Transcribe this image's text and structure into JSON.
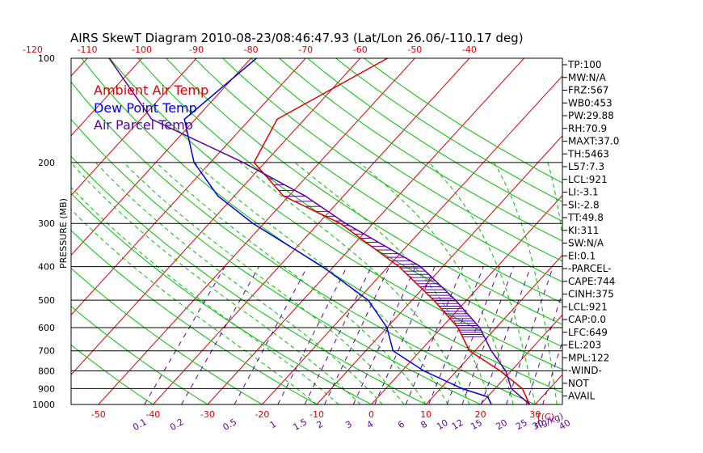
{
  "chart_data": {
    "type": "line",
    "title": "AIRS SkewT Diagram 2010-08-23/08:46:47.93 (Lat/Lon 26.06/-110.17 deg)",
    "ylabel": "PRESSURE (MB)",
    "x_unit_label": "T(C)",
    "mixing_ratio_unit_label": "r(g/kg)",
    "pressure_ticks": [
      100,
      200,
      300,
      400,
      500,
      600,
      700,
      800,
      900,
      1000
    ],
    "bottom_temp_ticks": [
      -50,
      -40,
      -30,
      -20,
      -10,
      0,
      10,
      20,
      30
    ],
    "top_temp_ticks": [
      -120,
      -110,
      -100,
      -90,
      -80,
      -70,
      -60,
      -50,
      -40
    ],
    "mixing_ratio_ticks": [
      "0.1",
      "0.2",
      "0.5",
      "1",
      "1.5",
      "2",
      "3",
      "4",
      "6",
      "8",
      "10",
      "12",
      "15",
      "20",
      "25",
      "30",
      "40"
    ],
    "ylim": [
      1000,
      100
    ],
    "legend": [
      {
        "name": "Ambient Air Temp",
        "color": "#e00000"
      },
      {
        "name": "Dew Point Temp",
        "color": "#0000e0"
      },
      {
        "name": "Air Parcel Temp",
        "color": "#5a00a0"
      }
    ],
    "series": [
      {
        "key": "ambient",
        "color": "#e00000",
        "pressure": [
          100,
          150,
          200,
          250,
          300,
          400,
          500,
          600,
          700,
          800,
          900,
          1000
        ],
        "temperature": [
          -55,
          -65,
          -62,
          -51,
          -36,
          -18,
          -6,
          3,
          9,
          18,
          25,
          29
        ]
      },
      {
        "key": "dewpoint",
        "color": "#0000e0",
        "pressure": [
          100,
          150,
          200,
          250,
          300,
          400,
          500,
          600,
          700,
          800,
          900,
          950,
          1000
        ],
        "temperature": [
          -79,
          -82,
          -73,
          -63,
          -52,
          -32,
          -18,
          -10,
          -5,
          4,
          14,
          20,
          22
        ]
      },
      {
        "key": "parcel",
        "color": "#5a00a0",
        "pressure": [
          100,
          150,
          200,
          250,
          300,
          400,
          500,
          600,
          700,
          800,
          900,
          1000
        ],
        "temperature": [
          -106,
          -88,
          -64,
          -47,
          -35,
          -14,
          -2,
          7,
          13,
          19,
          23,
          29
        ]
      }
    ],
    "side_panel": [
      "TP:100",
      "MW:N/A",
      "FRZ:567",
      "WB0:453",
      "PW:29.88",
      "RH:70.9",
      "MAXT:37.0",
      "TH:5463",
      "L57:7.3",
      "LCL:921",
      "LI:-3.1",
      "SI:-2.8",
      "TT:49.8",
      "KI:311",
      "SW:N/A",
      "EI:0.1",
      "-PARCEL-",
      "CAPE:744",
      "CINH:375",
      "LCL:921",
      "CAP:0.0",
      "LFC:649",
      "EL:203",
      "MPL:122",
      "-WIND-",
      "NOT",
      "AVAIL"
    ],
    "colors": {
      "isotherm": "#e00000",
      "dry_adiabat": "#00c000",
      "moist_adiabat": "#00c000",
      "mixing_ratio": "#5a00a0",
      "isobar": "#000000"
    }
  }
}
